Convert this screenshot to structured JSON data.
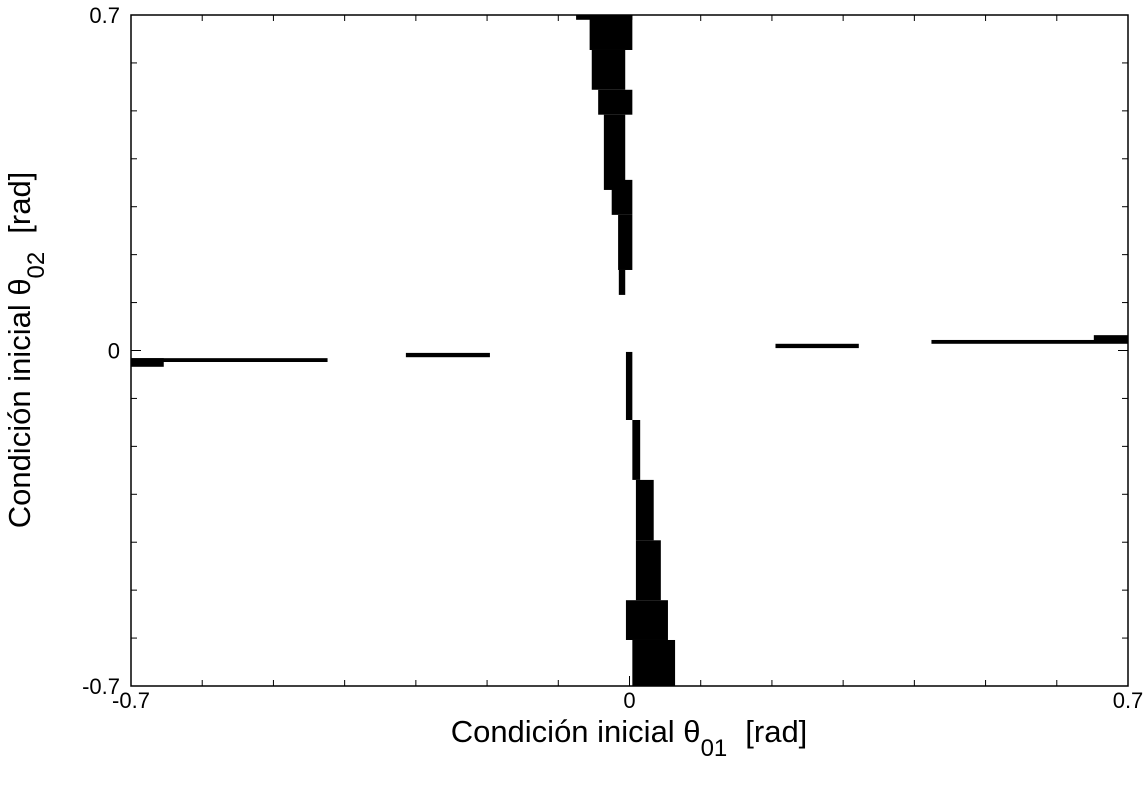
{
  "chart_data": {
    "type": "region",
    "x_label": {
      "main": "Condición inicial θ",
      "sub": "01",
      "unit": "[rad]"
    },
    "y_label": {
      "main": "Condición inicial θ",
      "sub": "02",
      "unit": "[rad]"
    },
    "xlim": [
      -0.7,
      0.7
    ],
    "ylim": [
      -0.7,
      0.7
    ],
    "xticks": [
      -0.7,
      0,
      0.7
    ],
    "yticks": [
      -0.7,
      0,
      0.7
    ],
    "minor_xticks": [
      -0.6,
      -0.5,
      -0.4,
      -0.3,
      -0.2,
      -0.1,
      0.1,
      0.2,
      0.3,
      0.4,
      0.5,
      0.6
    ],
    "minor_yticks": [
      -0.6,
      -0.5,
      -0.4,
      -0.3,
      -0.2,
      -0.1,
      0.1,
      0.2,
      0.3,
      0.4,
      0.5,
      0.6
    ],
    "color": "#000000",
    "regions": [
      {
        "x": [
          -0.7,
          -0.424
        ],
        "y": [
          -0.024,
          -0.016
        ]
      },
      {
        "x": [
          -0.7,
          -0.654
        ],
        "y": [
          -0.034,
          -0.016
        ]
      },
      {
        "x": [
          -0.314,
          -0.196
        ],
        "y": [
          -0.014,
          -0.005
        ]
      },
      {
        "x": [
          0.205,
          0.322
        ],
        "y": [
          0.005,
          0.014
        ]
      },
      {
        "x": [
          0.424,
          0.7
        ],
        "y": [
          0.014,
          0.022
        ]
      },
      {
        "x": [
          0.652,
          0.7
        ],
        "y": [
          0.016,
          0.032
        ]
      },
      {
        "x": [
          -0.075,
          0.004
        ],
        "y": [
          0.69,
          0.7
        ]
      },
      {
        "x": [
          -0.056,
          0.004
        ],
        "y": [
          0.627,
          0.7
        ]
      },
      {
        "x": [
          -0.053,
          -0.006
        ],
        "y": [
          0.544,
          0.627
        ]
      },
      {
        "x": [
          -0.044,
          0.004
        ],
        "y": [
          0.492,
          0.544
        ]
      },
      {
        "x": [
          -0.036,
          -0.006
        ],
        "y": [
          0.335,
          0.492
        ]
      },
      {
        "x": [
          -0.025,
          0.004
        ],
        "y": [
          0.283,
          0.356
        ]
      },
      {
        "x": [
          -0.016,
          0.004
        ],
        "y": [
          0.168,
          0.283
        ]
      },
      {
        "x": [
          -0.015,
          -0.006
        ],
        "y": [
          0.116,
          0.168
        ]
      },
      {
        "x": [
          -0.005,
          0.004
        ],
        "y": [
          -0.145,
          -0.003
        ]
      },
      {
        "x": [
          0.004,
          0.015
        ],
        "y": [
          -0.27,
          -0.145
        ]
      },
      {
        "x": [
          0.009,
          0.034
        ],
        "y": [
          -0.396,
          -0.27
        ]
      },
      {
        "x": [
          0.009,
          0.044
        ],
        "y": [
          -0.521,
          -0.396
        ]
      },
      {
        "x": [
          -0.005,
          0.054
        ],
        "y": [
          -0.604,
          -0.521
        ]
      },
      {
        "x": [
          0.004,
          0.064
        ],
        "y": [
          -0.7,
          -0.604
        ]
      }
    ]
  }
}
